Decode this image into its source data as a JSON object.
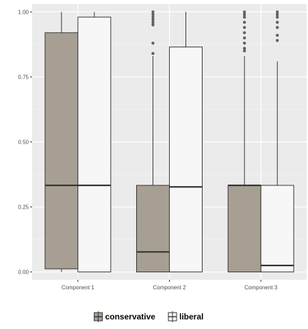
{
  "chart_data": {
    "type": "boxplot",
    "title": "",
    "xlabel": "",
    "ylabel": "",
    "ylim": [
      -0.03,
      1.03
    ],
    "yticks": [
      0.0,
      0.25,
      0.5,
      0.75,
      1.0
    ],
    "ytick_labels": [
      "0.00",
      "0.25",
      "0.50",
      "0.75",
      "1.00"
    ],
    "categories": [
      "Component 1",
      "Component 2",
      "Component 3"
    ],
    "grid": true,
    "legend_position": "bottom",
    "series": [
      {
        "name": "conservative",
        "color": "#a89f94",
        "boxes": [
          {
            "min": 0.0,
            "q1": 0.012,
            "median": 0.333,
            "q3": 0.92,
            "max": 1.0,
            "outliers": []
          },
          {
            "min": 0.0,
            "q1": 0.0,
            "median": 0.077,
            "q3": 0.333,
            "max": 0.83,
            "outliers": [
              0.84,
              0.88,
              0.95,
              0.96,
              0.97,
              0.98,
              0.99,
              1.0
            ]
          },
          {
            "min": 0.0,
            "q1": 0.0,
            "median": 0.333,
            "q3": 0.333,
            "max": 0.83,
            "outliers": [
              0.85,
              0.86,
              0.88,
              0.9,
              0.92,
              0.94,
              0.96,
              0.98,
              0.99,
              1.0
            ]
          }
        ]
      },
      {
        "name": "liberal",
        "color": "#f7f7f7",
        "boxes": [
          {
            "min": 0.0,
            "q1": 0.0,
            "median": 0.333,
            "q3": 0.98,
            "max": 1.0,
            "outliers": []
          },
          {
            "min": 0.0,
            "q1": 0.0,
            "median": 0.327,
            "q3": 0.865,
            "max": 1.0,
            "outliers": []
          },
          {
            "min": 0.0,
            "q1": 0.0,
            "median": 0.025,
            "q3": 0.333,
            "max": 0.81,
            "outliers": [
              0.89,
              0.91,
              0.94,
              0.96,
              0.98,
              0.99,
              1.0
            ]
          }
        ]
      }
    ]
  }
}
